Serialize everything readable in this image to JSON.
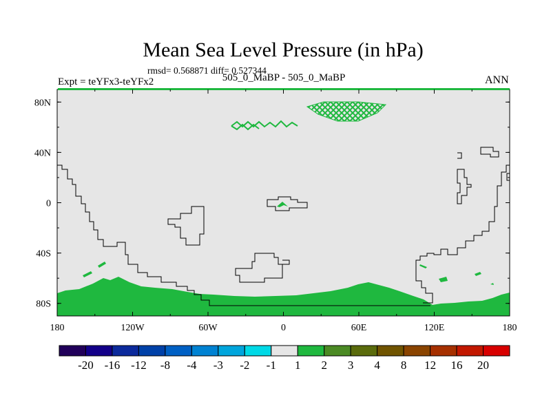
{
  "chart_data": {
    "type": "contour_map",
    "title": "Mean Sea Level Pressure (in hPa)",
    "stats_label": "rmsd= 0.568871 diff= 0.527344",
    "left_label": "Expt = teYFx3-teYFx2",
    "center_label": "505_0_MaBP - 505_0_MaBP",
    "right_label": "ANN",
    "x_axis": {
      "range": [
        -180,
        180
      ],
      "ticks": [
        {
          "value": -180,
          "label": "180"
        },
        {
          "value": -120,
          "label": "120W"
        },
        {
          "value": -60,
          "label": "60W"
        },
        {
          "value": 0,
          "label": "0"
        },
        {
          "value": 60,
          "label": "60E"
        },
        {
          "value": 120,
          "label": "120E"
        },
        {
          "value": 180,
          "label": "180"
        }
      ]
    },
    "y_axis": {
      "range": [
        -90,
        90
      ],
      "ticks": [
        {
          "value": 80,
          "label": "80N"
        },
        {
          "value": 40,
          "label": "40N"
        },
        {
          "value": 0,
          "label": "0"
        },
        {
          "value": -40,
          "label": "40S"
        },
        {
          "value": -80,
          "label": "80S"
        }
      ]
    },
    "colorbar": {
      "colors": [
        "#21005a",
        "#130089",
        "#0c2a9c",
        "#0041a8",
        "#0060c4",
        "#0082d2",
        "#00a5dc",
        "#00d9e6",
        "#e6e6e6",
        "#1fb83f",
        "#4b8a24",
        "#5a6b0c",
        "#705400",
        "#8a4400",
        "#a63000",
        "#c21800",
        "#d80000"
      ],
      "labels": [
        "-20",
        "-16",
        "-12",
        "-8",
        "-4",
        "-3",
        "-2",
        "-1",
        "1",
        "2",
        "3",
        "4",
        "8",
        "12",
        "16",
        "20"
      ]
    },
    "field_summary": "Difference mostly in the -1 to 1 hPa band; 1 to 2 hPa along the Antarctic margin and in small Arctic patches.",
    "colors": {
      "background_field": "#e6e6e6",
      "positive_field": "#1fb83f",
      "coastline": "#000000"
    }
  }
}
